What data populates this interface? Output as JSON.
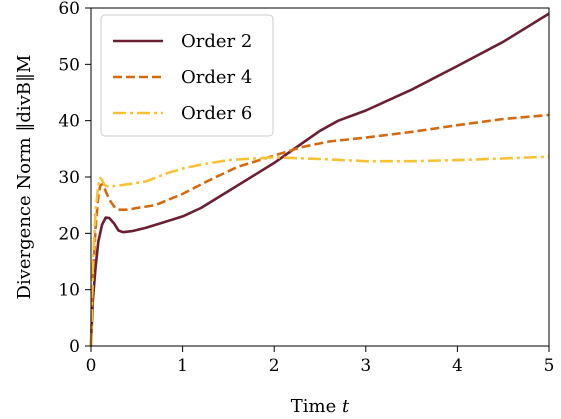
{
  "chart_data": {
    "type": "line",
    "title": "",
    "xlabel": "Time t",
    "ylabel": "Divergence Norm ‖divB‖M",
    "xlim": [
      0,
      5
    ],
    "ylim": [
      0,
      60
    ],
    "xticks": [
      0,
      1,
      2,
      3,
      4,
      5
    ],
    "yticks": [
      0,
      10,
      20,
      30,
      40,
      50,
      60
    ],
    "grid": false,
    "legend_position": "top-left",
    "series": [
      {
        "name": "Order 2",
        "color": "#6b1f33",
        "style": "solid",
        "points": [
          [
            0,
            0
          ],
          [
            0.02,
            8
          ],
          [
            0.05,
            14
          ],
          [
            0.08,
            18.5
          ],
          [
            0.12,
            21.5
          ],
          [
            0.16,
            22.8
          ],
          [
            0.2,
            22.7
          ],
          [
            0.25,
            21.8
          ],
          [
            0.3,
            20.5
          ],
          [
            0.35,
            20.2
          ],
          [
            0.45,
            20.4
          ],
          [
            0.6,
            21
          ],
          [
            0.8,
            22
          ],
          [
            1.0,
            23
          ],
          [
            1.2,
            24.5
          ],
          [
            1.5,
            27.5
          ],
          [
            1.8,
            30.5
          ],
          [
            2.0,
            32.5
          ],
          [
            2.2,
            34.8
          ],
          [
            2.5,
            38.2
          ],
          [
            2.7,
            40
          ],
          [
            3.0,
            41.8
          ],
          [
            3.5,
            45.5
          ],
          [
            4.0,
            49.7
          ],
          [
            4.5,
            54
          ],
          [
            5.0,
            59
          ]
        ]
      },
      {
        "name": "Order 4",
        "color": "#d46a10",
        "style": "dashed",
        "points": [
          [
            0,
            0
          ],
          [
            0.02,
            12
          ],
          [
            0.05,
            21
          ],
          [
            0.08,
            26.5
          ],
          [
            0.1,
            28.5
          ],
          [
            0.13,
            28.8
          ],
          [
            0.16,
            27.5
          ],
          [
            0.2,
            26
          ],
          [
            0.25,
            24.8
          ],
          [
            0.3,
            24.2
          ],
          [
            0.4,
            24.2
          ],
          [
            0.5,
            24.5
          ],
          [
            0.7,
            25
          ],
          [
            1.0,
            27
          ],
          [
            1.3,
            29.5
          ],
          [
            1.6,
            31.8
          ],
          [
            2.0,
            33.8
          ],
          [
            2.3,
            35.3
          ],
          [
            2.6,
            36.3
          ],
          [
            3.0,
            37
          ],
          [
            3.5,
            38
          ],
          [
            4.0,
            39.2
          ],
          [
            4.5,
            40.3
          ],
          [
            5.0,
            41
          ]
        ]
      },
      {
        "name": "Order 6",
        "color": "#f7c233",
        "style": "dashdot",
        "points": [
          [
            0,
            0
          ],
          [
            0.02,
            14
          ],
          [
            0.05,
            24
          ],
          [
            0.08,
            28.5
          ],
          [
            0.1,
            29.8
          ],
          [
            0.12,
            29.5
          ],
          [
            0.15,
            28.5
          ],
          [
            0.2,
            28.3
          ],
          [
            0.3,
            28.5
          ],
          [
            0.4,
            28.7
          ],
          [
            0.6,
            29.2
          ],
          [
            0.8,
            30.5
          ],
          [
            1.0,
            31.5
          ],
          [
            1.2,
            32.2
          ],
          [
            1.5,
            33
          ],
          [
            2.0,
            33.5
          ],
          [
            2.5,
            33.2
          ],
          [
            3.0,
            32.8
          ],
          [
            3.5,
            32.8
          ],
          [
            4.0,
            33
          ],
          [
            4.5,
            33.3
          ],
          [
            5.0,
            33.6
          ]
        ]
      }
    ]
  }
}
